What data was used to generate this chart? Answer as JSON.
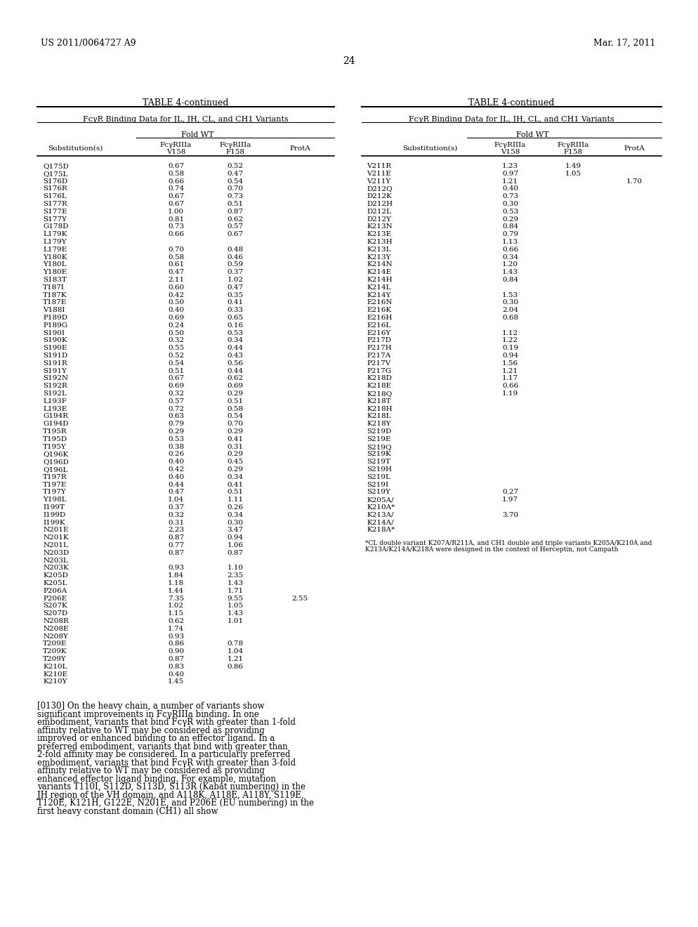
{
  "header_left": "US 2011/0064727 A9",
  "header_right": "Mar. 17, 2011",
  "page_number": "24",
  "table_title": "TABLE 4-continued",
  "table_subtitle": "FcγR Binding Data for JL, JH, CL, and CH1 Variants",
  "fold_wt_label": "Fold WT",
  "col_headers": [
    "Substitution(s)",
    "FcγRIIIa\nV158",
    "FcγRIIIa\nF158",
    "ProtA"
  ],
  "left_table_data": [
    [
      "Q175D",
      "0.67",
      "0.52",
      ""
    ],
    [
      "Q175L",
      "0.58",
      "0.47",
      ""
    ],
    [
      "S176D",
      "0.66",
      "0.54",
      ""
    ],
    [
      "S176R",
      "0.74",
      "0.70",
      ""
    ],
    [
      "S176L",
      "0.67",
      "0.73",
      ""
    ],
    [
      "S177R",
      "0.67",
      "0.51",
      ""
    ],
    [
      "S177E",
      "1.00",
      "0.87",
      ""
    ],
    [
      "S177Y",
      "0.81",
      "0.62",
      ""
    ],
    [
      "G178D",
      "0.73",
      "0.57",
      ""
    ],
    [
      "L179K",
      "0.66",
      "0.67",
      ""
    ],
    [
      "L179Y",
      "",
      "",
      ""
    ],
    [
      "L179E",
      "0.70",
      "0.48",
      ""
    ],
    [
      "Y180K",
      "0.58",
      "0.46",
      ""
    ],
    [
      "Y180L",
      "0.61",
      "0.59",
      ""
    ],
    [
      "Y180E",
      "0.47",
      "0.37",
      ""
    ],
    [
      "S183T",
      "2.11",
      "1.02",
      ""
    ],
    [
      "T187I",
      "0.60",
      "0.47",
      ""
    ],
    [
      "T187K",
      "0.42",
      "0.35",
      ""
    ],
    [
      "T187E",
      "0.50",
      "0.41",
      ""
    ],
    [
      "V188I",
      "0.40",
      "0.33",
      ""
    ],
    [
      "P189D",
      "0.69",
      "0.65",
      ""
    ],
    [
      "P189G",
      "0.24",
      "0.16",
      ""
    ],
    [
      "S190I",
      "0.50",
      "0.53",
      ""
    ],
    [
      "S190K",
      "0.32",
      "0.34",
      ""
    ],
    [
      "S190E",
      "0.55",
      "0.44",
      ""
    ],
    [
      "S191D",
      "0.52",
      "0.43",
      ""
    ],
    [
      "S191R",
      "0.54",
      "0.56",
      ""
    ],
    [
      "S191Y",
      "0.51",
      "0.44",
      ""
    ],
    [
      "S192N",
      "0.67",
      "0.62",
      ""
    ],
    [
      "S192R",
      "0.69",
      "0.69",
      ""
    ],
    [
      "S192L",
      "0.32",
      "0.29",
      ""
    ],
    [
      "L193F",
      "0.57",
      "0.51",
      ""
    ],
    [
      "L193E",
      "0.72",
      "0.58",
      ""
    ],
    [
      "G194R",
      "0.63",
      "0.54",
      ""
    ],
    [
      "G194D",
      "0.79",
      "0.70",
      ""
    ],
    [
      "T195R",
      "0.29",
      "0.29",
      ""
    ],
    [
      "T195D",
      "0.53",
      "0.41",
      ""
    ],
    [
      "T195Y",
      "0.38",
      "0.31",
      ""
    ],
    [
      "Q196K",
      "0.26",
      "0.29",
      ""
    ],
    [
      "Q196D",
      "0.40",
      "0.45",
      ""
    ],
    [
      "Q196L",
      "0.42",
      "0.29",
      ""
    ],
    [
      "T197R",
      "0.40",
      "0.34",
      ""
    ],
    [
      "T197E",
      "0.44",
      "0.41",
      ""
    ],
    [
      "T197Y",
      "0.47",
      "0.51",
      ""
    ],
    [
      "Y198L",
      "1.04",
      "1.11",
      ""
    ],
    [
      "I199T",
      "0.37",
      "0.26",
      ""
    ],
    [
      "I199D",
      "0.32",
      "0.34",
      ""
    ],
    [
      "I199K",
      "0.31",
      "0.30",
      ""
    ],
    [
      "N201E",
      "2.23",
      "3.47",
      ""
    ],
    [
      "N201K",
      "0.87",
      "0.94",
      ""
    ],
    [
      "N201L",
      "0.77",
      "1.06",
      ""
    ],
    [
      "N203D",
      "0.87",
      "0.87",
      ""
    ],
    [
      "N203L",
      "",
      "",
      ""
    ],
    [
      "N203K",
      "0.93",
      "1.10",
      ""
    ],
    [
      "K205D",
      "1.84",
      "2.35",
      ""
    ],
    [
      "K205L",
      "1.18",
      "1.43",
      ""
    ],
    [
      "P206A",
      "1.44",
      "1.71",
      ""
    ],
    [
      "P206E",
      "7.35",
      "9.55",
      "2.55"
    ],
    [
      "S207K",
      "1.02",
      "1.05",
      ""
    ],
    [
      "S207D",
      "1.15",
      "1.43",
      ""
    ],
    [
      "N208R",
      "0.62",
      "1.01",
      ""
    ],
    [
      "N208E",
      "1.74",
      "",
      ""
    ],
    [
      "N208Y",
      "0.93",
      "",
      ""
    ],
    [
      "T209E",
      "0.86",
      "0.78",
      ""
    ],
    [
      "T209K",
      "0.90",
      "1.04",
      ""
    ],
    [
      "T209Y",
      "0.87",
      "1.21",
      ""
    ],
    [
      "K210L",
      "0.83",
      "0.86",
      ""
    ],
    [
      "K210E",
      "0.40",
      "",
      ""
    ],
    [
      "K210Y",
      "1.45",
      "",
      ""
    ]
  ],
  "right_table_data": [
    [
      "V211R",
      "1.23",
      "1.49",
      ""
    ],
    [
      "V211E",
      "0.97",
      "1.05",
      ""
    ],
    [
      "V211Y",
      "1.21",
      "",
      "1.70"
    ],
    [
      "D212Q",
      "0.40",
      "",
      ""
    ],
    [
      "D212K",
      "0.73",
      "",
      ""
    ],
    [
      "D212H",
      "0.30",
      "",
      ""
    ],
    [
      "D212L",
      "0.53",
      "",
      ""
    ],
    [
      "D212Y",
      "0.29",
      "",
      ""
    ],
    [
      "K213N",
      "0.84",
      "",
      ""
    ],
    [
      "K213E",
      "0.79",
      "",
      ""
    ],
    [
      "K213H",
      "1.13",
      "",
      ""
    ],
    [
      "K213L",
      "0.66",
      "",
      ""
    ],
    [
      "K213Y",
      "0.34",
      "",
      ""
    ],
    [
      "K214N",
      "1.20",
      "",
      ""
    ],
    [
      "K214E",
      "1.43",
      "",
      ""
    ],
    [
      "K214H",
      "0.84",
      "",
      ""
    ],
    [
      "K214L",
      "",
      "",
      ""
    ],
    [
      "K214Y",
      "1.53",
      "",
      ""
    ],
    [
      "E216N",
      "0.30",
      "",
      ""
    ],
    [
      "E216K",
      "2.04",
      "",
      ""
    ],
    [
      "E216H",
      "0.68",
      "",
      ""
    ],
    [
      "E216L",
      "",
      "",
      ""
    ],
    [
      "E216Y",
      "1.12",
      "",
      ""
    ],
    [
      "P217D",
      "1.22",
      "",
      ""
    ],
    [
      "P217H",
      "0.19",
      "",
      ""
    ],
    [
      "P217A",
      "0.94",
      "",
      ""
    ],
    [
      "P217V",
      "1.56",
      "",
      ""
    ],
    [
      "P217G",
      "1.21",
      "",
      ""
    ],
    [
      "K218D",
      "1.17",
      "",
      ""
    ],
    [
      "K218E",
      "0.66",
      "",
      ""
    ],
    [
      "K218Q",
      "1.19",
      "",
      ""
    ],
    [
      "K218T",
      "",
      "",
      ""
    ],
    [
      "K218H",
      "",
      "",
      ""
    ],
    [
      "K218L",
      "",
      "",
      ""
    ],
    [
      "K218Y",
      "",
      "",
      ""
    ],
    [
      "S219D",
      "",
      "",
      ""
    ],
    [
      "S219E",
      "",
      "",
      ""
    ],
    [
      "S219Q",
      "",
      "",
      ""
    ],
    [
      "S219K",
      "",
      "",
      ""
    ],
    [
      "S219T",
      "",
      "",
      ""
    ],
    [
      "S219H",
      "",
      "",
      ""
    ],
    [
      "S219L",
      "",
      "",
      ""
    ],
    [
      "S219I",
      "",
      "",
      ""
    ],
    [
      "S219Y",
      "0.27",
      "",
      ""
    ],
    [
      "K205A/",
      "1.97",
      "",
      ""
    ],
    [
      "K210A*",
      "",
      "",
      ""
    ],
    [
      "K213A/",
      "3.70",
      "",
      ""
    ],
    [
      "K214A/",
      "",
      "",
      ""
    ],
    [
      "K218A*",
      "",
      "",
      ""
    ]
  ],
  "footnote": "*CL double variant K207A/R211A, and CH1 double and triple variants K205A/K210A and\nK213A/K214A/K218A were designed in the context of Herceptin, not Campath",
  "paragraph_tag": "[0130]",
  "paragraph_text": "On the heavy chain, a number of variants show significant improvements in FcγRIIIa binding. In one embodiment, variants that bind FcγR with greater than 1-fold affinity relative to WT may be considered as providing improved or enhanced binding to an effector ligand. In a preferred embodiment, variants that bind with greater than 2-fold affinity may be considered. In a particularly preferred embodiment, variants that bind FcγR with greater than 3-fold affinity relative to WT may be considered as providing enhanced effector ligand binding. For example, mutation variants T110I, S112D, S113D, S113R (Kabat numbering) in the JH region of the VH domain, and A118K, A118E, A118Y, S119E, T120E, K121H, G122E, N201E, and P206E (EU numbering) in the first heavy constant domain (CH1) all show"
}
